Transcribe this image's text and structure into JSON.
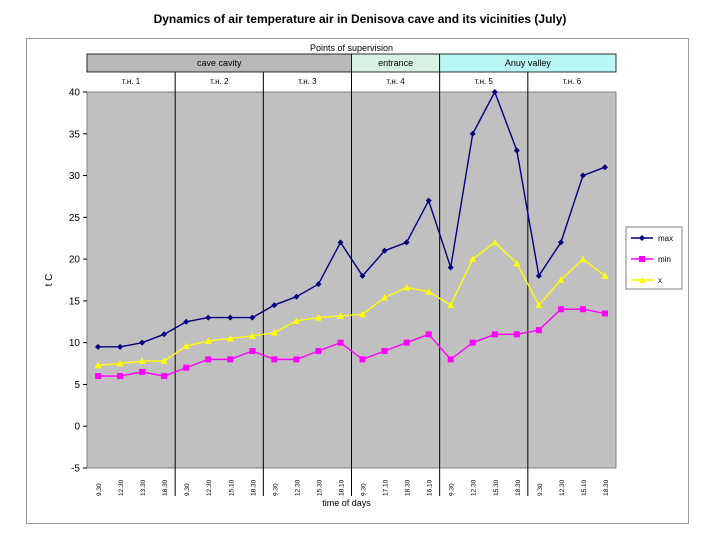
{
  "title": "Dynamics of air temperature air in Denisova cave and its vicinities (July)",
  "header": {
    "label": "Points of supervision",
    "zones": [
      {
        "label": "cave cavity",
        "color": "#b9b9b9"
      },
      {
        "label": "entrance",
        "color": "#d7f1e2"
      },
      {
        "label": "Anuy valley",
        "color": "#b8f7f3"
      }
    ]
  },
  "points": [
    "т.н. 1",
    "т.н. 2",
    "т.н. 3",
    "т.н. 4",
    "т.н. 5",
    "т.н. 6"
  ],
  "chart_data": {
    "type": "line",
    "title": "Dynamics of air temperature air in Denisova cave and its vicinities (July)",
    "xlabel": "time of days",
    "ylabel": "t C",
    "ylim": [
      -5,
      40
    ],
    "yticks": [
      -5,
      0,
      5,
      10,
      15,
      20,
      25,
      30,
      35,
      40
    ],
    "grid": "vertical separators only",
    "legend_position": "right",
    "x": [
      "9.30",
      "12.30",
      "13.30",
      "18.30",
      "9.30",
      "12.30",
      "15.10",
      "18.30",
      "9.30",
      "12.30",
      "15.30",
      "18.10",
      "9.30",
      "17.10",
      "18.30",
      "16.10",
      "9.30",
      "12.30",
      "15.30",
      "18.30",
      "9.30",
      "12.30",
      "15.10",
      "18.30"
    ],
    "series": [
      {
        "name": "max",
        "color": "#000080",
        "marker": "diamond",
        "values": [
          9.5,
          9.5,
          10,
          11,
          12.5,
          13,
          13,
          13,
          14.5,
          15.5,
          17,
          22,
          18,
          21,
          22,
          27,
          19,
          35,
          40,
          33,
          18,
          22,
          30,
          31
        ]
      },
      {
        "name": "min",
        "color": "#ff00ff",
        "marker": "square",
        "values": [
          6,
          6,
          6.5,
          6,
          7,
          8,
          8,
          9,
          8,
          8,
          9,
          10,
          8,
          9,
          10,
          11,
          8,
          10,
          11,
          11,
          11.5,
          14,
          14,
          13.5
        ]
      },
      {
        "name": "x",
        "color": "#ffff00",
        "marker": "triangle",
        "values": [
          7.3,
          7.5,
          7.8,
          7.8,
          9.6,
          10.2,
          10.5,
          10.8,
          11.2,
          12.6,
          13,
          13.2,
          13.4,
          15.4,
          16.6,
          16.1,
          14.5,
          20,
          22,
          19.5,
          14.5,
          17.5,
          20,
          18
        ]
      }
    ]
  }
}
